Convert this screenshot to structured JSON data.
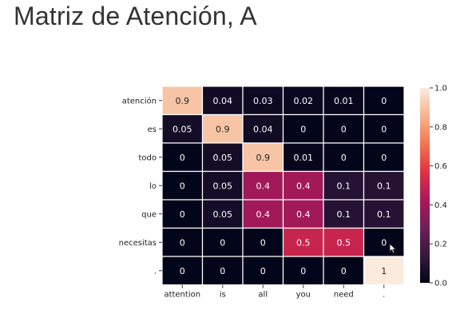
{
  "slide": {
    "title": "Matriz de Atención, A"
  },
  "chart_data": {
    "type": "heatmap",
    "title": "",
    "xlabel": "",
    "ylabel": "",
    "x_categories": [
      "attention",
      "is",
      "all",
      "you",
      "need",
      "."
    ],
    "y_categories": [
      "atención",
      "es",
      "todo",
      "lo",
      "que",
      "necesitas",
      "."
    ],
    "values": [
      [
        0.9,
        0.04,
        0.03,
        0.02,
        0.01,
        0
      ],
      [
        0.05,
        0.9,
        0.04,
        0,
        0,
        0
      ],
      [
        0,
        0.05,
        0.9,
        0.01,
        0,
        0
      ],
      [
        0,
        0.05,
        0.4,
        0.4,
        0.1,
        0.1
      ],
      [
        0,
        0.05,
        0.4,
        0.4,
        0.1,
        0.1
      ],
      [
        0,
        0,
        0,
        0.5,
        0.5,
        0
      ],
      [
        0,
        0,
        0,
        0,
        0,
        1
      ]
    ],
    "colorbar": {
      "range": [
        0.0,
        1.0
      ],
      "ticks": [
        "0.0",
        "0.2",
        "0.4",
        "0.6",
        "0.8",
        "1.0"
      ],
      "colormap": "rocket",
      "colormap_stops": [
        "#03051A",
        "#35193E",
        "#701F57",
        "#AD1759",
        "#E13342",
        "#F37651",
        "#F6B48F",
        "#FAEBDD"
      ]
    },
    "annotations": true,
    "grid": true
  }
}
